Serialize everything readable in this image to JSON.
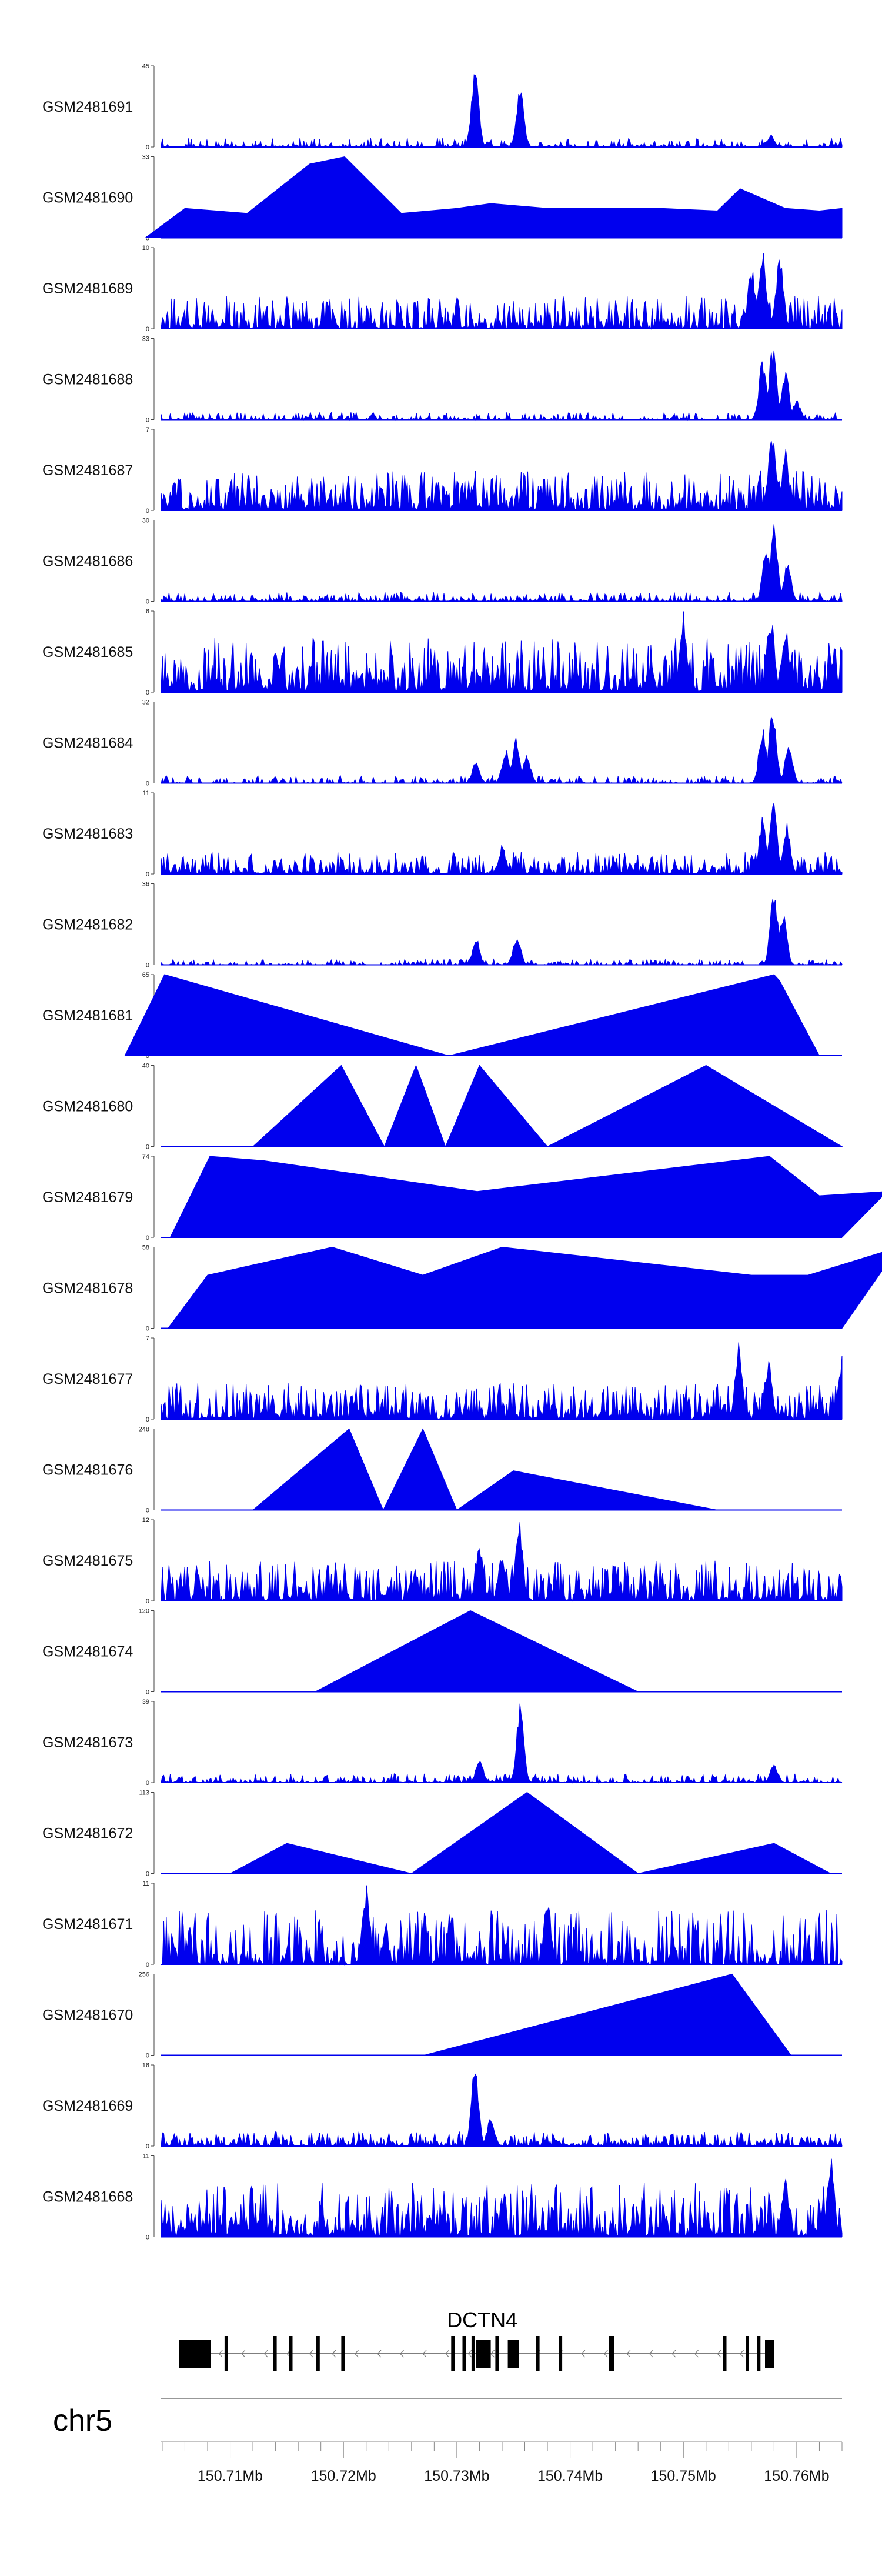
{
  "chart_data": {
    "type": "area",
    "title": "",
    "chromosome": "chr5",
    "xlabel": "",
    "ylabel": "",
    "xlim_mb": [
      150.7039,
      150.764
    ],
    "x_ticks": [
      "150.71Mb",
      "150.72Mb",
      "150.73Mb",
      "150.74Mb",
      "150.75Mb",
      "150.76Mb"
    ],
    "x_tick_values_mb": [
      150.71,
      150.72,
      150.73,
      150.74,
      150.75,
      150.76
    ],
    "fill_color": "#0000ee",
    "tracks": [
      {
        "name": "GSM2481691",
        "ymax": "45",
        "ymin": "0",
        "style": "dense",
        "base": 0.05,
        "density": 0.55,
        "peaks": [
          [
            150.7316,
            45
          ],
          [
            150.7356,
            36
          ],
          [
            150.7577,
            7
          ]
        ]
      },
      {
        "name": "GSM2481690",
        "ymax": "33",
        "ymin": "0",
        "style": "sparse",
        "peaks": [
          [
            150.706,
            12
          ],
          [
            150.7115,
            10
          ],
          [
            150.717,
            30
          ],
          [
            150.7201,
            33
          ],
          [
            150.7251,
            10
          ],
          [
            150.73,
            12
          ],
          [
            150.733,
            14
          ],
          [
            150.738,
            12
          ],
          [
            150.742,
            12
          ],
          [
            150.748,
            12
          ],
          [
            150.753,
            11
          ],
          [
            150.755,
            20
          ],
          [
            150.759,
            12
          ],
          [
            150.762,
            11
          ],
          [
            150.764,
            12
          ]
        ]
      },
      {
        "name": "GSM2481689",
        "ymax": "10",
        "ymin": "0",
        "style": "dense",
        "base": 0.18,
        "density": 0.9,
        "peaks": [
          [
            150.757,
            10
          ],
          [
            150.7585,
            9.5
          ],
          [
            150.756,
            8
          ]
        ]
      },
      {
        "name": "GSM2481688",
        "ymax": "33",
        "ymin": "0",
        "style": "dense",
        "base": 0.04,
        "density": 0.6,
        "peaks": [
          [
            150.7579,
            33
          ],
          [
            150.757,
            25
          ],
          [
            150.759,
            20
          ],
          [
            150.76,
            8
          ]
        ]
      },
      {
        "name": "GSM2481687",
        "ymax": "7",
        "ymin": "0",
        "style": "dense",
        "base": 0.22,
        "density": 1.0,
        "peaks": [
          [
            150.7578,
            7
          ],
          [
            150.759,
            5.5
          ]
        ]
      },
      {
        "name": "GSM2481686",
        "ymax": "30",
        "ymin": "0",
        "style": "dense",
        "base": 0.05,
        "density": 0.75,
        "peaks": [
          [
            150.758,
            30
          ],
          [
            150.7573,
            21
          ],
          [
            150.7592,
            15
          ]
        ]
      },
      {
        "name": "GSM2481685",
        "ymax": "6",
        "ymin": "0",
        "style": "dense",
        "base": 0.3,
        "density": 1.0,
        "peaks": [
          [
            150.75,
            6
          ],
          [
            150.7577,
            6
          ],
          [
            150.759,
            5
          ]
        ]
      },
      {
        "name": "GSM2481684",
        "ymax": "32",
        "ymin": "0",
        "style": "dense",
        "base": 0.04,
        "density": 0.6,
        "peaks": [
          [
            150.7317,
            9
          ],
          [
            150.7352,
            18
          ],
          [
            150.7343,
            14
          ],
          [
            150.7362,
            12
          ],
          [
            150.7579,
            32
          ],
          [
            150.757,
            24
          ],
          [
            150.7593,
            18
          ]
        ]
      },
      {
        "name": "GSM2481683",
        "ymax": "11",
        "ymin": "0",
        "style": "dense",
        "base": 0.12,
        "density": 0.9,
        "peaks": [
          [
            150.7579,
            11
          ],
          [
            150.757,
            8
          ],
          [
            150.7591,
            7
          ],
          [
            150.734,
            4
          ]
        ]
      },
      {
        "name": "GSM2481682",
        "ymax": "36",
        "ymin": "0",
        "style": "dense",
        "base": 0.03,
        "density": 0.6,
        "peaks": [
          [
            150.7317,
            12
          ],
          [
            150.7353,
            14
          ],
          [
            150.758,
            36
          ],
          [
            150.7588,
            25
          ]
        ]
      },
      {
        "name": "GSM2481681",
        "ymax": "65",
        "ymin": "0",
        "style": "sparse",
        "peaks": [
          [
            150.7042,
            65
          ],
          [
            150.758,
            65
          ],
          [
            150.7585,
            60
          ]
        ],
        "valley": [
          150.7293,
          0
        ]
      },
      {
        "name": "GSM2481680",
        "ymax": "40",
        "ymin": "0",
        "style": "sparse",
        "peaks": [
          [
            150.7198,
            40
          ],
          [
            150.7264,
            40
          ],
          [
            150.732,
            40
          ],
          [
            150.752,
            40
          ]
        ],
        "valleys": [
          [
            150.712,
            0
          ],
          [
            150.7236,
            0
          ],
          [
            150.729,
            0
          ],
          [
            150.738,
            0
          ],
          [
            150.764,
            0
          ]
        ]
      },
      {
        "name": "GSM2481679",
        "ymax": "74",
        "ymin": "0",
        "style": "sparse",
        "peaks": [
          [
            150.7082,
            74
          ],
          [
            150.713,
            70
          ],
          [
            150.7318,
            42
          ],
          [
            150.7576,
            74
          ],
          [
            150.762,
            38
          ],
          [
            150.768,
            42
          ]
        ]
      },
      {
        "name": "GSM2481678",
        "ymax": "58",
        "ymin": "0",
        "style": "sparse",
        "peaks": [
          [
            150.708,
            38
          ],
          [
            150.719,
            58
          ],
          [
            150.727,
            38
          ],
          [
            150.734,
            58
          ],
          [
            150.756,
            38
          ],
          [
            150.761,
            38
          ],
          [
            150.769,
            58
          ]
        ]
      },
      {
        "name": "GSM2481677",
        "ymax": "7",
        "ymin": "0",
        "style": "dense",
        "base": 0.2,
        "density": 0.95,
        "peaks": [
          [
            150.7549,
            7
          ],
          [
            150.7575,
            5.5
          ],
          [
            150.764,
            5.5
          ]
        ]
      },
      {
        "name": "GSM2481676",
        "ymax": "248",
        "ymin": "0",
        "style": "sparse",
        "peaks": [
          [
            150.7205,
            248
          ],
          [
            150.727,
            248
          ],
          [
            150.735,
            120
          ]
        ],
        "valleys": [
          [
            150.712,
            0
          ],
          [
            150.7235,
            0
          ],
          [
            150.73,
            0
          ],
          [
            150.753,
            0
          ]
        ]
      },
      {
        "name": "GSM2481675",
        "ymax": "12",
        "ymin": "0",
        "style": "dense",
        "base": 0.22,
        "density": 0.95,
        "peaks": [
          [
            150.7355,
            12
          ],
          [
            150.732,
            9
          ],
          [
            150.734,
            7
          ]
        ]
      },
      {
        "name": "GSM2481674",
        "ymax": "120",
        "ymin": "0",
        "style": "sparse",
        "peaks": [
          [
            150.7312,
            120
          ]
        ],
        "valleys": [
          [
            150.7175,
            0
          ],
          [
            150.746,
            0
          ]
        ]
      },
      {
        "name": "GSM2481673",
        "ymax": "39",
        "ymin": "0",
        "style": "dense",
        "base": 0.05,
        "density": 0.7,
        "peaks": [
          [
            150.7356,
            39
          ],
          [
            150.732,
            12
          ],
          [
            150.758,
            10
          ]
        ]
      },
      {
        "name": "GSM2481672",
        "ymax": "113",
        "ymin": "0",
        "style": "sparse",
        "peaks": [
          [
            150.7362,
            113
          ],
          [
            150.715,
            42
          ],
          [
            150.758,
            42
          ]
        ],
        "valleys": [
          [
            150.71,
            0
          ],
          [
            150.726,
            0
          ],
          [
            150.746,
            0
          ],
          [
            150.763,
            0
          ]
        ]
      },
      {
        "name": "GSM2481671",
        "ymax": "11",
        "ymin": "0",
        "style": "dense",
        "base": 0.3,
        "density": 0.85,
        "peaks": [
          [
            150.722,
            11
          ],
          [
            150.738,
            9
          ]
        ]
      },
      {
        "name": "GSM2481670",
        "ymax": "256",
        "ymin": "0",
        "style": "sparse",
        "peaks": [
          [
            150.7543,
            256
          ]
        ],
        "valleys": [
          [
            150.7271,
            0
          ],
          [
            150.7595,
            0
          ]
        ]
      },
      {
        "name": "GSM2481669",
        "ymax": "16",
        "ymin": "0",
        "style": "dense",
        "base": 0.08,
        "density": 0.85,
        "peaks": [
          [
            150.7316,
            16
          ],
          [
            150.733,
            6
          ]
        ]
      },
      {
        "name": "GSM2481668",
        "ymax": "11",
        "ymin": "0",
        "style": "dense",
        "base": 0.3,
        "density": 1.0,
        "peaks": [
          [
            150.763,
            11
          ],
          [
            150.759,
            8
          ]
        ]
      }
    ],
    "gene": {
      "name": "DCTN4",
      "strand": "-",
      "start_mb": 150.7055,
      "end_mb": 150.758,
      "exons_mb": [
        [
          150.7055,
          150.7083
        ],
        [
          150.7095,
          150.7098
        ],
        [
          150.7138,
          150.7141
        ],
        [
          150.7152,
          150.7155
        ],
        [
          150.7176,
          150.7179
        ],
        [
          150.7198,
          150.7201
        ],
        [
          150.7295,
          150.7298
        ],
        [
          150.7305,
          150.7308
        ],
        [
          150.7313,
          150.7316
        ],
        [
          150.7317,
          150.733
        ],
        [
          150.7334,
          150.7337
        ],
        [
          150.7345,
          150.7355
        ],
        [
          150.737,
          150.7373
        ],
        [
          150.739,
          150.7393
        ],
        [
          150.7434,
          150.7439
        ],
        [
          150.7535,
          150.7538
        ],
        [
          150.7555,
          150.7558
        ],
        [
          150.7565,
          150.7568
        ],
        [
          150.7572,
          150.758
        ]
      ]
    }
  }
}
